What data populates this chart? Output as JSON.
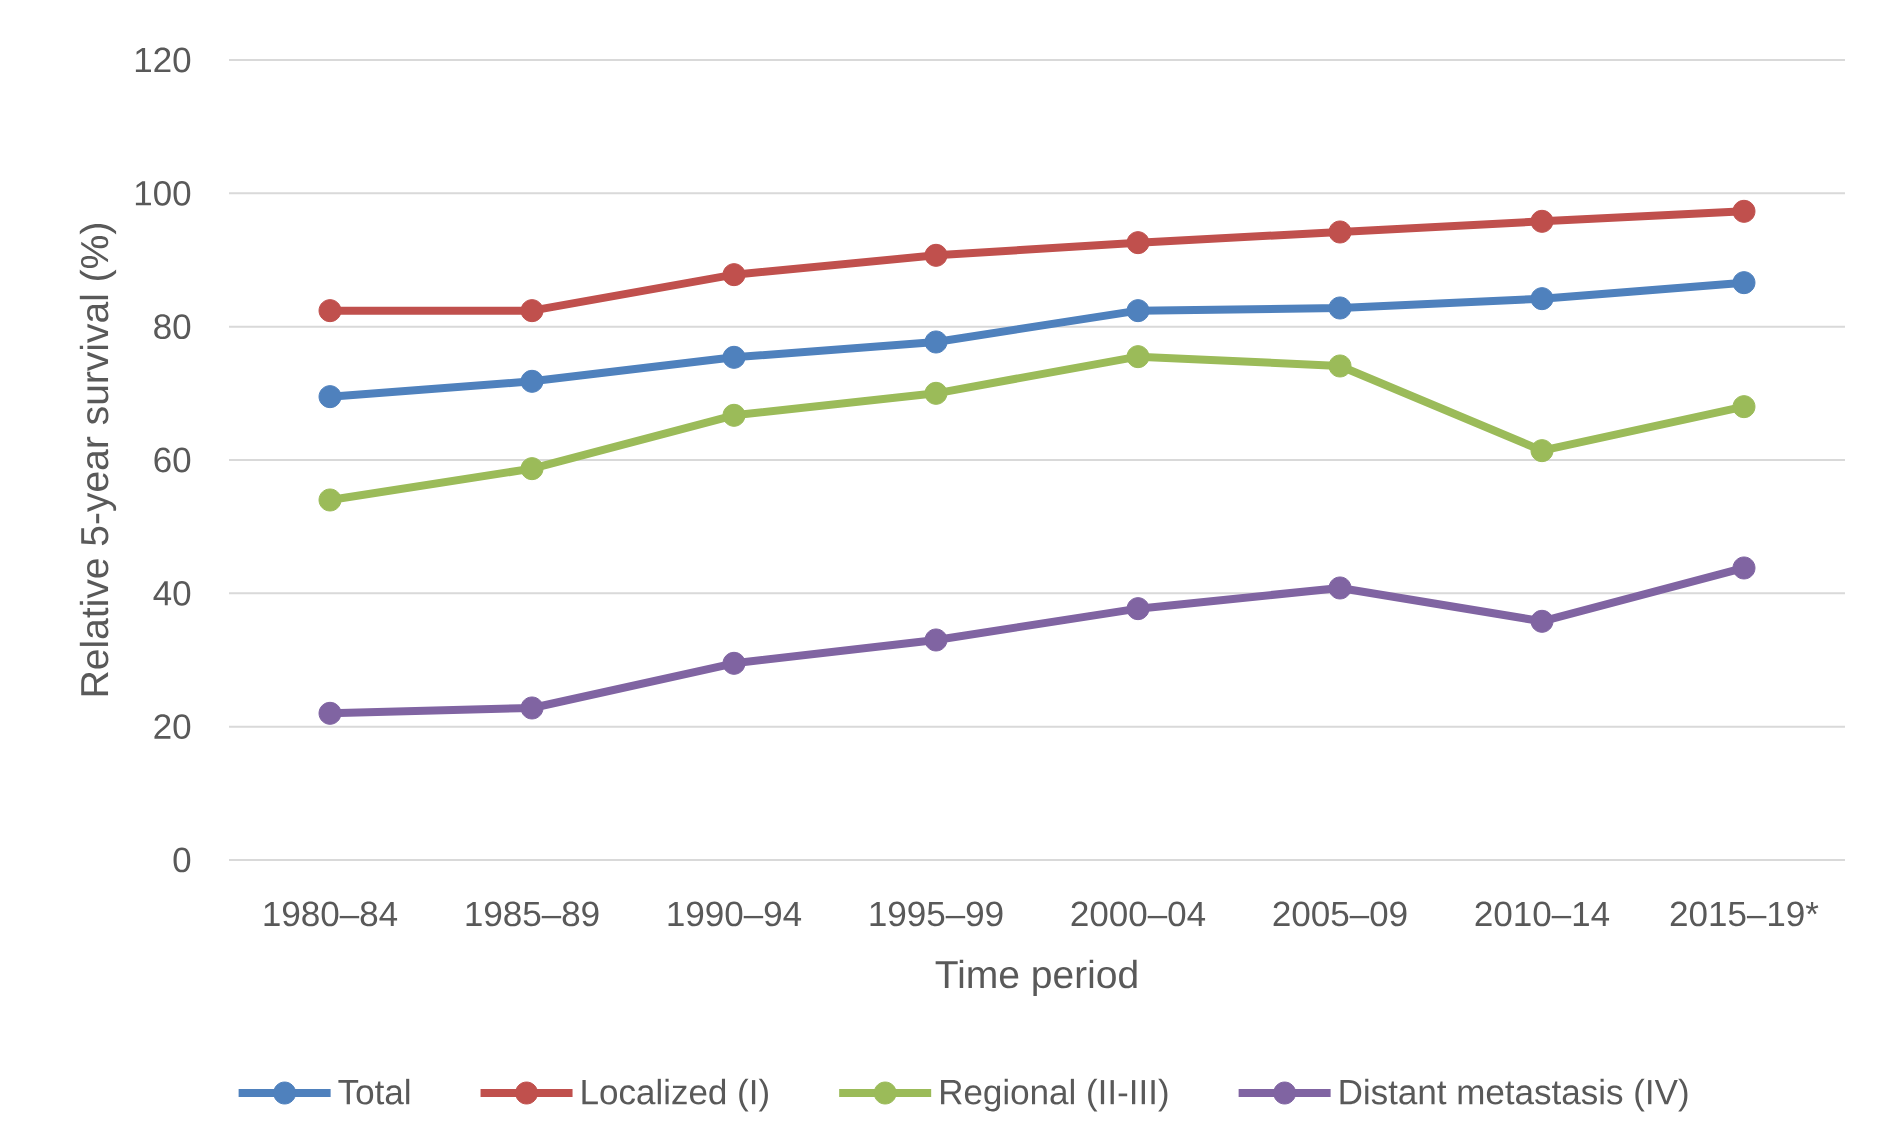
{
  "chart_data": {
    "type": "line",
    "xlabel": "Time period",
    "ylabel": "Relative 5-year survival (%)",
    "categories": [
      "1980–84",
      "1985–89",
      "1990–94",
      "1995–99",
      "2000–04",
      "2005–09",
      "2010–14",
      "2015–19*"
    ],
    "series": [
      {
        "name": "Total",
        "color": "#4f81bd",
        "values": [
          69.5,
          71.8,
          75.4,
          77.7,
          82.4,
          82.8,
          84.2,
          86.6
        ]
      },
      {
        "name": "Localized (I)",
        "color": "#c0504d",
        "values": [
          82.4,
          82.4,
          87.8,
          90.7,
          92.6,
          94.2,
          95.8,
          97.3
        ]
      },
      {
        "name": "Regional (II-III)",
        "color": "#9bbb59",
        "values": [
          54.0,
          58.7,
          66.7,
          70.0,
          75.5,
          74.1,
          61.4,
          68.0
        ]
      },
      {
        "name": "Distant metastasis (IV)",
        "color": "#8064a2",
        "values": [
          22.0,
          22.8,
          29.5,
          33.0,
          37.7,
          40.8,
          35.8,
          43.8
        ]
      }
    ],
    "ylim": [
      0,
      120
    ],
    "yticks": [
      0,
      20,
      40,
      60,
      80,
      100,
      120
    ],
    "grid": "y",
    "legend": "bottom",
    "marker": "circle",
    "line_style": "solid"
  }
}
